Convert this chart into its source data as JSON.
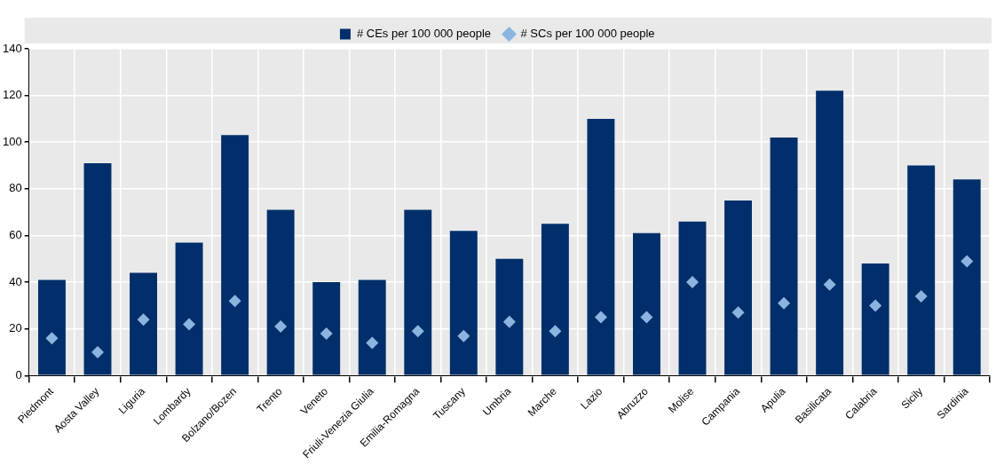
{
  "chart_data": {
    "type": "bar",
    "categories": [
      "Piedmont",
      "Aosta Valley",
      "Liguria",
      "Lombardy",
      "Bolzano/Bozen",
      "Trento",
      "Veneto",
      "Friuli-Venezia Giulia",
      "Emilia-Romagna",
      "Tuscany",
      "Umbria",
      "Marche",
      "Lazio",
      "Abruzzo",
      "Molise",
      "Campania",
      "Apulia",
      "Basilicata",
      "Calabria",
      "Sicily",
      "Sardinia"
    ],
    "series": [
      {
        "name": "# CEs per 100 000 people",
        "color": "#002f6c",
        "values": [
          41,
          91,
          44,
          57,
          103,
          71,
          40,
          41,
          71,
          62,
          50,
          65,
          110,
          61,
          66,
          75,
          102,
          122,
          48,
          90,
          84
        ]
      },
      {
        "name": "# SCs per 100 000 people",
        "type": "scatter",
        "marker": "diamond",
        "color": "#8cb4e0",
        "x": [
          "Piedmont",
          "Aosta Valley",
          "Liguria",
          "Lombardy",
          "Bolzano/Bozen",
          "Trento",
          "Veneto",
          "Friuli-Venezia Giulia",
          "Emilia-Romagna",
          "Tuscany",
          "Umbria",
          "Marche",
          "Lazio",
          "Abruzzo",
          "Molise",
          "Campania",
          "Apulia",
          "Basilicata",
          "Calabria",
          "Sicily",
          "Sardinia"
        ],
        "values": [
          16,
          10,
          24,
          22,
          32,
          21,
          18,
          14,
          19,
          17,
          23,
          19,
          25,
          25,
          40,
          27,
          31,
          39,
          30,
          34,
          49
        ]
      }
    ],
    "ylim": [
      0,
      140
    ],
    "yticks": [
      0,
      20,
      40,
      60,
      80,
      100,
      120,
      140
    ],
    "grid": true,
    "legend": "top"
  }
}
